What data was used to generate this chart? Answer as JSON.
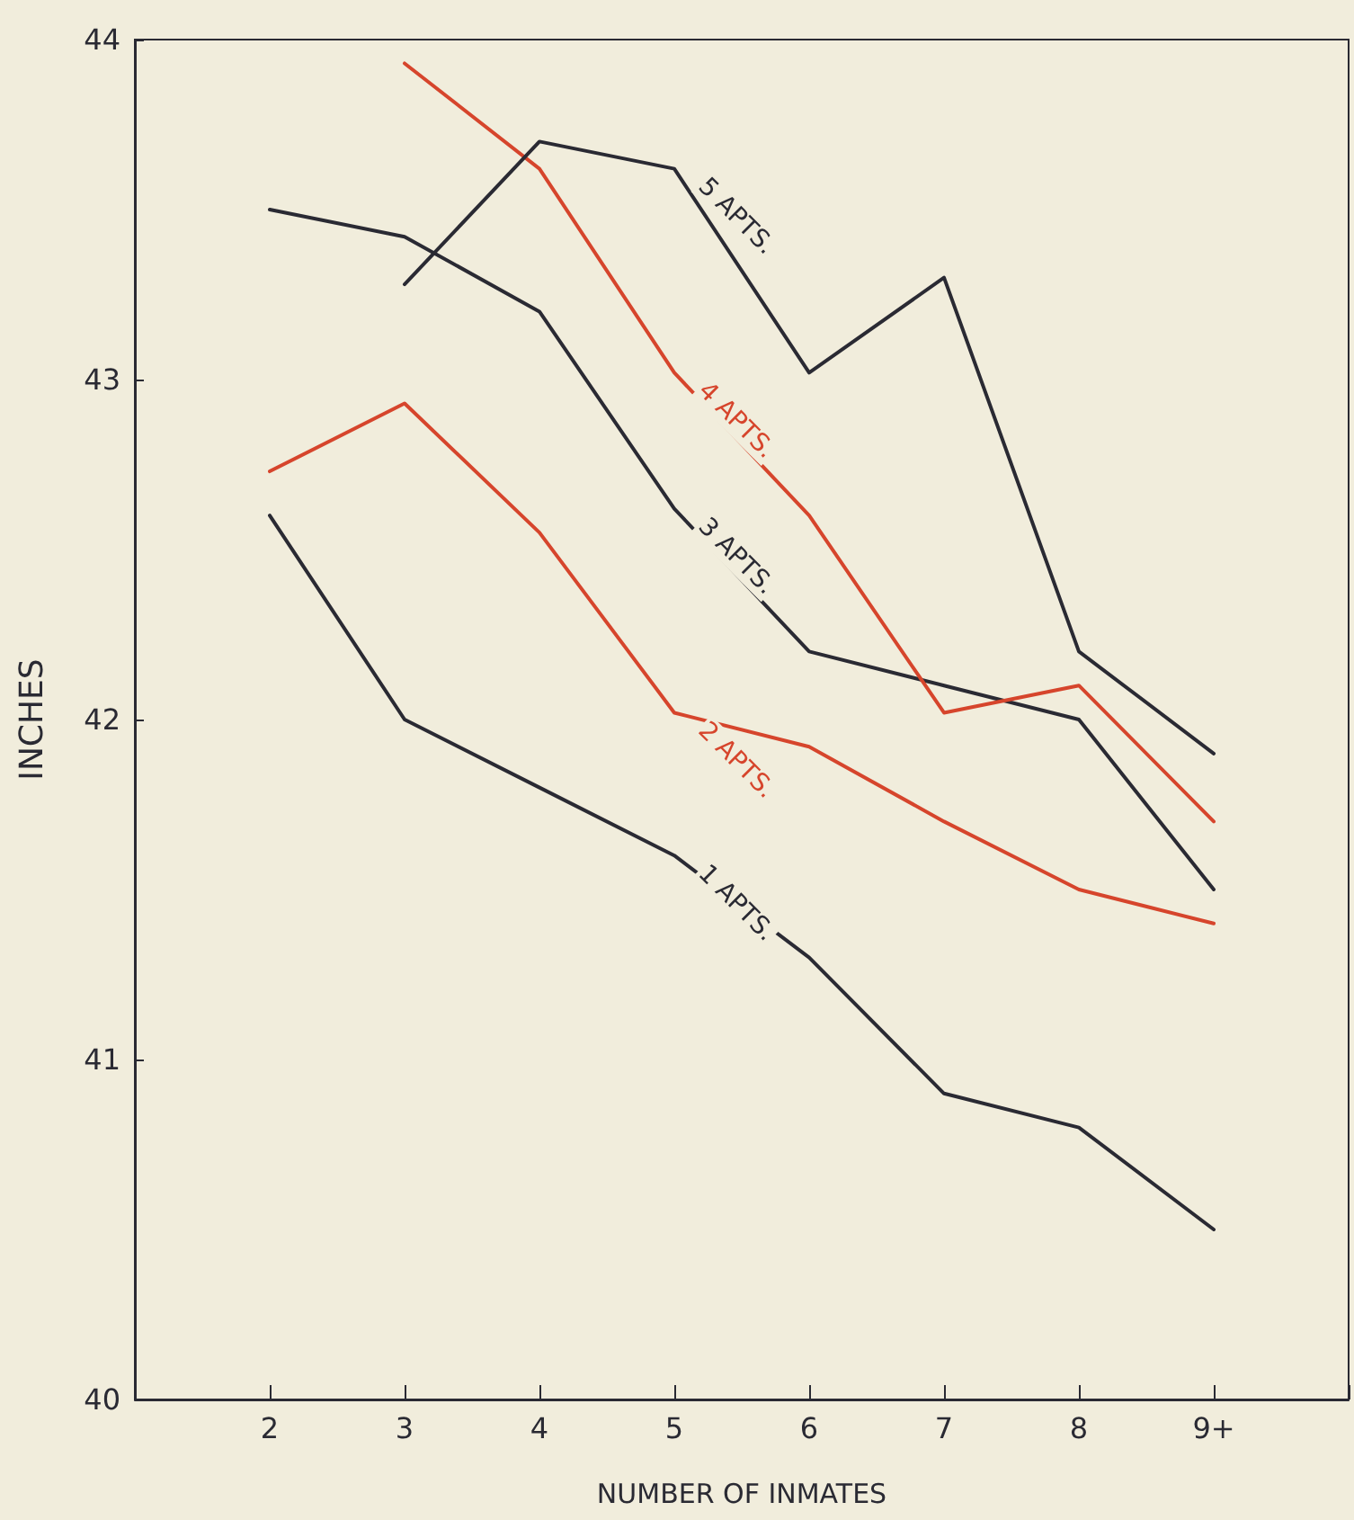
{
  "chart_data": {
    "type": "line",
    "xlabel": "NUMBER OF INMATES",
    "ylabel": "INCHES",
    "categories": [
      null,
      "2",
      "3",
      "4",
      "5",
      "6",
      "7",
      "8",
      "9+",
      null
    ],
    "series": [
      {
        "name": "1 APTS.",
        "color": "#2a2a33",
        "values": [
          null,
          42.6,
          42.0,
          41.8,
          41.6,
          41.3,
          40.9,
          40.8,
          40.5,
          null
        ]
      },
      {
        "name": "2 APTS.",
        "color": "#d6452c",
        "values": [
          null,
          42.73,
          42.93,
          42.55,
          42.02,
          41.92,
          41.7,
          41.5,
          41.4,
          null
        ]
      },
      {
        "name": "3 APTS.",
        "color": "#2a2a33",
        "values": [
          null,
          43.5,
          43.42,
          43.2,
          42.62,
          42.2,
          42.1,
          42.0,
          41.5,
          null
        ]
      },
      {
        "name": "4 APTS.",
        "color": "#d6452c",
        "values": [
          null,
          null,
          43.93,
          43.62,
          43.02,
          42.6,
          42.02,
          42.1,
          41.7,
          null
        ]
      },
      {
        "name": "5 APTS.",
        "color": "#2a2a33",
        "values": [
          null,
          null,
          43.28,
          43.7,
          43.62,
          43.02,
          43.3,
          42.2,
          41.9,
          null
        ]
      }
    ],
    "ylim": [
      40,
      44
    ],
    "yticks": [
      40,
      41,
      42,
      43,
      44
    ],
    "grid": false,
    "legend": false,
    "marker": "none",
    "line_style": "solid"
  }
}
